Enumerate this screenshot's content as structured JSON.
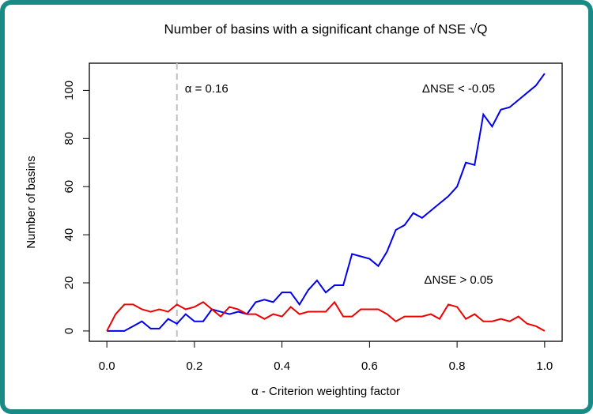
{
  "chart_data": {
    "type": "line",
    "title": "Number of basins with a significant change of NSE √Q",
    "x_label": "α - Criterion weighting factor",
    "y_label": "Number of basins",
    "x": [
      0,
      0.02,
      0.04,
      0.06,
      0.08,
      0.1,
      0.12,
      0.14,
      0.16,
      0.18,
      0.2,
      0.22,
      0.24,
      0.26,
      0.28,
      0.3,
      0.32,
      0.34,
      0.36,
      0.38,
      0.4,
      0.42,
      0.44,
      0.46,
      0.48,
      0.5,
      0.52,
      0.54,
      0.56,
      0.58,
      0.6,
      0.62,
      0.64,
      0.66,
      0.68,
      0.7,
      0.72,
      0.74,
      0.76,
      0.78,
      0.8,
      0.82,
      0.84,
      0.86,
      0.88,
      0.9,
      0.92,
      0.94,
      0.96,
      0.98,
      1
    ],
    "series": [
      {
        "name": "ΔNSE < -0.05",
        "color": "#0000ee",
        "values": [
          0,
          0,
          0,
          2,
          4,
          1,
          1,
          5,
          3,
          7,
          4,
          4,
          9,
          8,
          7,
          8,
          7,
          12,
          13,
          12,
          16,
          16,
          11,
          17,
          21,
          16,
          19,
          19,
          32,
          31,
          30,
          27,
          33,
          42,
          44,
          49,
          47,
          50,
          53,
          56,
          60,
          70,
          69,
          90,
          85,
          92,
          93,
          96,
          99,
          102,
          107
        ]
      },
      {
        "name": "ΔNSE > 0.05",
        "color": "#ee0000",
        "values": [
          0,
          7,
          11,
          11,
          9,
          8,
          9,
          8,
          11,
          9,
          10,
          12,
          9,
          6,
          10,
          9,
          7,
          7,
          5,
          7,
          6,
          10,
          7,
          8,
          8,
          8,
          12,
          6,
          6,
          9,
          9,
          9,
          7,
          4,
          6,
          6,
          6,
          7,
          5,
          11,
          10,
          5,
          7,
          4,
          4,
          5,
          4,
          6,
          3,
          2,
          0
        ]
      }
    ],
    "vline": {
      "value": 0.16,
      "label": "α = 0.16",
      "color": "#c0c0c0"
    },
    "xlim": [
      -0.04,
      1.04
    ],
    "ylim": [
      -4.3,
      111.3
    ],
    "xticks": [
      {
        "value": 0,
        "label": "0.0"
      },
      0.2,
      0.4,
      0.6,
      0.8,
      {
        "value": 1,
        "label": "1.0"
      }
    ],
    "yticks": [
      0,
      20,
      40,
      60,
      80,
      100
    ],
    "grid": false
  }
}
